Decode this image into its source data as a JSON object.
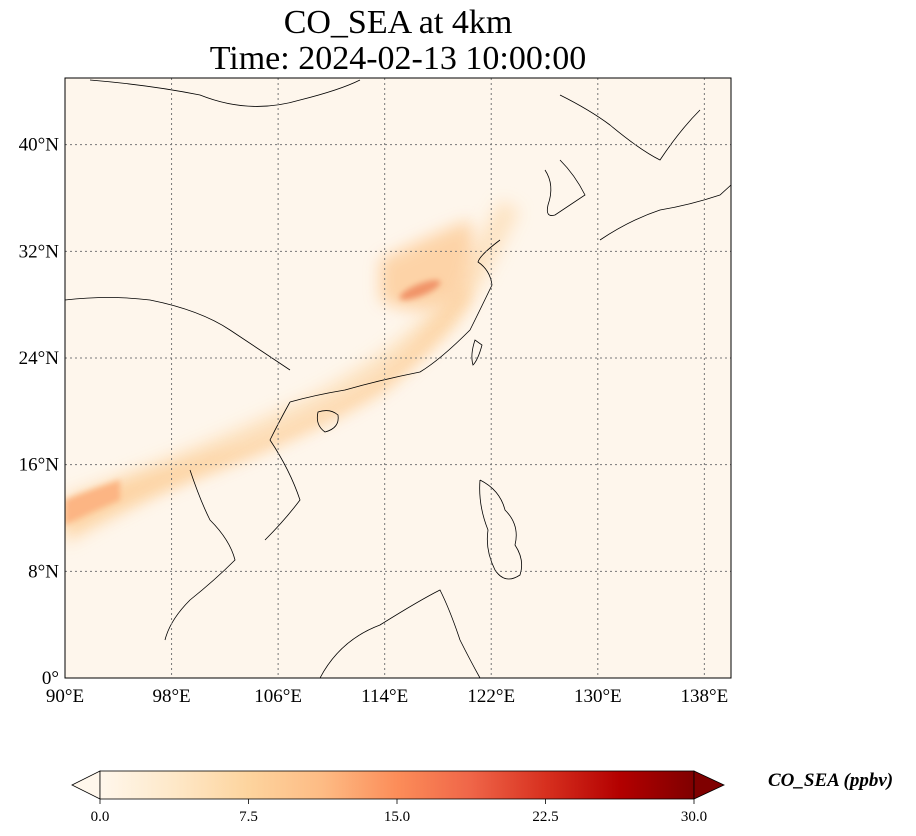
{
  "title": {
    "line1": "CO_SEA at 4km",
    "line2": "Time: 2024-02-13 10:00:00"
  },
  "map": {
    "lon_range": [
      90,
      140
    ],
    "lat_range": [
      0,
      45
    ],
    "lon_ticks": [
      {
        "value": 90,
        "label": "90°E"
      },
      {
        "value": 98,
        "label": "98°E"
      },
      {
        "value": 106,
        "label": "106°E"
      },
      {
        "value": 114,
        "label": "114°E"
      },
      {
        "value": 122,
        "label": "122°E"
      },
      {
        "value": 130,
        "label": "130°E"
      },
      {
        "value": 138,
        "label": "138°E"
      }
    ],
    "lat_ticks": [
      {
        "value": 0,
        "label": "0°"
      },
      {
        "value": 8,
        "label": "8°N"
      },
      {
        "value": 16,
        "label": "16°N"
      },
      {
        "value": 24,
        "label": "24°N"
      },
      {
        "value": 32,
        "label": "32°N"
      },
      {
        "value": 40,
        "label": "40°N"
      }
    ],
    "gridlines": true,
    "background_color": "#fef6ec",
    "coastline_color": "#000000",
    "max_region": "lower Yangtze River basin, China (~29°N, 116°E)"
  },
  "colorbar": {
    "label": "CO_SEA (ppbv)",
    "min": 0.0,
    "max": 30.0,
    "colormap": "OrRd",
    "extend": "both",
    "ticks": [
      "0.0",
      "7.5",
      "15.0",
      "22.5",
      "30.0"
    ],
    "colors": [
      "#fff7ec",
      "#fee8c8",
      "#fdd49e",
      "#fdbb84",
      "#fc8d59",
      "#ef6548",
      "#d7301f",
      "#b30000",
      "#7f0000"
    ]
  }
}
